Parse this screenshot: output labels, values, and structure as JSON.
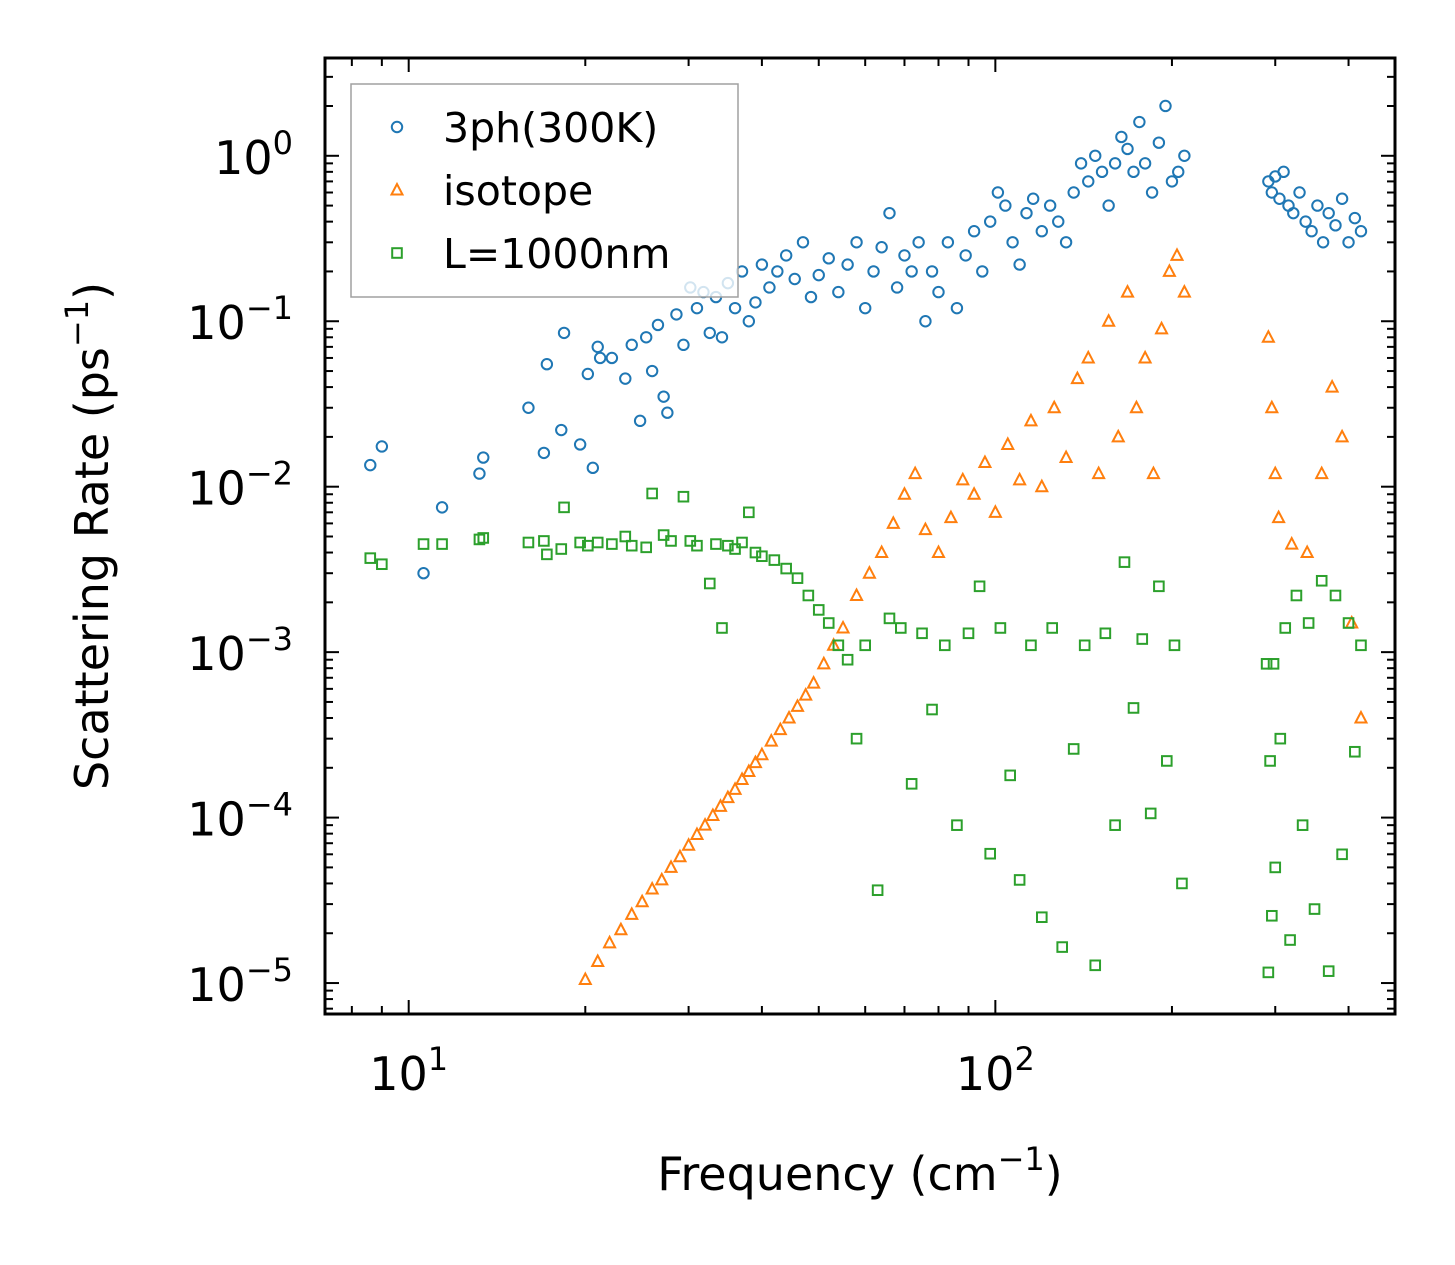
{
  "chart_data": {
    "type": "scatter",
    "xscale": "log",
    "yscale": "log",
    "xlabel": "Frequency (cm",
    "xlabel_exp": "−1",
    "xlabel_close": ")",
    "ylabel": "Scattering Rate (ps",
    "ylabel_exp": "−1",
    "ylabel_close": ")",
    "xlim": [
      7.2,
      480
    ],
    "ylim": [
      6.5e-06,
      3.9
    ],
    "xticks": [
      {
        "value": 10,
        "base": "10",
        "exp": "1"
      },
      {
        "value": 100,
        "base": "10",
        "exp": "2"
      }
    ],
    "yticks": [
      {
        "value": 1,
        "base": "10",
        "exp": "0"
      },
      {
        "value": 0.1,
        "base": "10",
        "exp": "−1"
      },
      {
        "value": 0.01,
        "base": "10",
        "exp": "−2"
      },
      {
        "value": 0.001,
        "base": "10",
        "exp": "−3"
      },
      {
        "value": 0.0001,
        "base": "10",
        "exp": "−4"
      },
      {
        "value": 1e-05,
        "base": "10",
        "exp": "−5"
      }
    ],
    "legend_position": "top-left",
    "series": [
      {
        "name": "3ph(300K)",
        "marker": "circle",
        "color": "#1f77b4",
        "x": [
          8.6,
          9.0,
          10.6,
          11.4,
          13.2,
          13.4,
          16.0,
          17.0,
          17.2,
          18.2,
          18.4,
          19.6,
          20.2,
          20.6,
          21.0,
          21.2,
          22.2,
          23.4,
          24.0,
          24.8,
          25.4,
          26.0,
          26.6,
          27.2,
          27.6,
          28.6,
          29.4,
          30.2,
          31.0,
          31.8,
          32.6,
          33.4,
          34.2,
          35.0,
          36.0,
          37.0,
          38.0,
          39.0,
          40.0,
          41.2,
          42.5,
          44.0,
          45.5,
          47.0,
          48.5,
          50.0,
          52.0,
          54.0,
          56.0,
          58.0,
          60.0,
          62.0,
          64.0,
          66.0,
          68.0,
          70.0,
          72.0,
          74.0,
          76.0,
          78.0,
          80.0,
          83.0,
          86.0,
          89.0,
          92.0,
          95.0,
          98.0,
          101.0,
          104.0,
          107.0,
          110.0,
          113.0,
          116.0,
          120.0,
          124.0,
          128.0,
          132.0,
          136.0,
          140.0,
          144.0,
          148.0,
          152.0,
          156.0,
          160.0,
          164.0,
          168.0,
          172.0,
          176.0,
          180.0,
          185.0,
          190.0,
          195.0,
          200.0,
          205.0,
          210.0,
          292.0,
          296.0,
          300.0,
          305.0,
          310.0,
          316.0,
          322.0,
          330.0,
          338.0,
          346.0,
          354.0,
          362.0,
          370.0,
          380.0,
          390.0,
          400.0,
          410.0,
          420.0
        ],
        "y": [
          0.0135,
          0.0175,
          0.003,
          0.0075,
          0.012,
          0.015,
          0.03,
          0.016,
          0.055,
          0.022,
          0.085,
          0.018,
          0.048,
          0.013,
          0.07,
          0.06,
          0.06,
          0.045,
          0.072,
          0.025,
          0.08,
          0.05,
          0.095,
          0.035,
          0.028,
          0.11,
          0.072,
          0.16,
          0.12,
          0.15,
          0.085,
          0.14,
          0.08,
          0.17,
          0.12,
          0.2,
          0.1,
          0.13,
          0.22,
          0.16,
          0.2,
          0.25,
          0.18,
          0.3,
          0.14,
          0.19,
          0.24,
          0.15,
          0.22,
          0.3,
          0.12,
          0.2,
          0.28,
          0.45,
          0.16,
          0.25,
          0.2,
          0.3,
          0.1,
          0.2,
          0.15,
          0.3,
          0.12,
          0.25,
          0.35,
          0.2,
          0.4,
          0.6,
          0.5,
          0.3,
          0.22,
          0.45,
          0.55,
          0.35,
          0.5,
          0.4,
          0.3,
          0.6,
          0.9,
          0.7,
          1.0,
          0.8,
          0.5,
          0.9,
          1.3,
          1.1,
          0.8,
          1.6,
          0.9,
          0.6,
          1.2,
          2.0,
          0.7,
          0.8,
          1.0,
          0.7,
          0.6,
          0.75,
          0.55,
          0.8,
          0.5,
          0.45,
          0.6,
          0.4,
          0.35,
          0.5,
          0.3,
          0.45,
          0.38,
          0.55,
          0.3,
          0.42,
          0.35
        ]
      },
      {
        "name": "isotope",
        "marker": "triangle",
        "color": "#ff7f0e",
        "x": [
          20.0,
          21.0,
          22.0,
          23.0,
          24.0,
          25.0,
          26.0,
          27.0,
          28.0,
          29.0,
          30.0,
          31.0,
          32.0,
          33.0,
          34.0,
          35.0,
          36.0,
          37.0,
          38.0,
          39.0,
          40.0,
          41.5,
          43.0,
          44.5,
          46.0,
          47.5,
          49.0,
          51.0,
          53.0,
          55.0,
          58.0,
          61.0,
          64.0,
          67.0,
          70.0,
          73.0,
          76.0,
          80.0,
          84.0,
          88.0,
          92.0,
          96.0,
          100.0,
          105.0,
          110.0,
          115.0,
          120.0,
          126.0,
          132.0,
          138.0,
          144.0,
          150.0,
          156.0,
          162.0,
          168.0,
          174.0,
          180.0,
          186.0,
          192.0,
          198.0,
          204.0,
          210.0,
          292.0,
          296.0,
          300.0,
          304.0,
          320.0,
          340.0,
          360.0,
          375.0,
          390.0,
          405.0,
          420.0
        ],
        "y": [
          1.05e-05,
          1.35e-05,
          1.75e-05,
          2.1e-05,
          2.6e-05,
          3.1e-05,
          3.7e-05,
          4.2e-05,
          5e-05,
          5.8e-05,
          6.8e-05,
          7.9e-05,
          9e-05,
          0.000103,
          0.000117,
          0.000132,
          0.000148,
          0.00017,
          0.00019,
          0.000215,
          0.00024,
          0.00029,
          0.00034,
          0.0004,
          0.00047,
          0.00055,
          0.00065,
          0.00085,
          0.0011,
          0.0014,
          0.0022,
          0.003,
          0.004,
          0.006,
          0.009,
          0.012,
          0.0055,
          0.004,
          0.0065,
          0.011,
          0.009,
          0.014,
          0.007,
          0.018,
          0.011,
          0.025,
          0.01,
          0.03,
          0.015,
          0.045,
          0.06,
          0.012,
          0.1,
          0.02,
          0.15,
          0.03,
          0.06,
          0.012,
          0.09,
          0.2,
          0.25,
          0.15,
          0.08,
          0.03,
          0.012,
          0.0065,
          0.0045,
          0.004,
          0.012,
          0.04,
          0.02,
          0.0015,
          0.0004
        ]
      },
      {
        "name": "L=1000nm",
        "marker": "square",
        "color": "#2ca02c",
        "x": [
          8.6,
          9.0,
          10.6,
          11.4,
          13.2,
          13.4,
          16.0,
          17.0,
          17.2,
          18.2,
          18.4,
          19.6,
          20.2,
          21.0,
          22.2,
          23.4,
          24.0,
          25.4,
          26.0,
          27.2,
          28.0,
          29.4,
          30.2,
          31.0,
          32.6,
          33.4,
          34.2,
          35.0,
          36.0,
          37.0,
          38.0,
          39.0,
          40.0,
          42.0,
          44.0,
          46.0,
          48.0,
          50.0,
          52.0,
          54.0,
          56.0,
          58.0,
          60.0,
          63.0,
          66.0,
          69.0,
          72.0,
          75.0,
          78.0,
          82.0,
          86.0,
          90.0,
          94.0,
          98.0,
          102.0,
          106.0,
          110.0,
          115.0,
          120.0,
          125.0,
          130.0,
          136.0,
          142.0,
          148.0,
          154.0,
          160.0,
          166.0,
          172.0,
          178.0,
          184.0,
          190.0,
          196.0,
          202.0,
          208.0,
          290.0,
          292.0,
          294.0,
          296.0,
          298.0,
          300.0,
          306.0,
          312.0,
          318.0,
          326.0,
          334.0,
          342.0,
          350.0,
          360.0,
          370.0,
          380.0,
          390.0,
          400.0,
          410.0,
          420.0
        ],
        "y": [
          0.0037,
          0.0034,
          0.0045,
          0.0045,
          0.0048,
          0.0049,
          0.0046,
          0.0047,
          0.0039,
          0.0042,
          0.0075,
          0.0046,
          0.0044,
          0.0046,
          0.0045,
          0.005,
          0.0044,
          0.0043,
          0.0091,
          0.0051,
          0.0047,
          0.0087,
          0.0047,
          0.0044,
          0.0026,
          0.0045,
          0.0014,
          0.0044,
          0.0042,
          0.0046,
          0.007,
          0.004,
          0.0038,
          0.0036,
          0.0032,
          0.0028,
          0.0022,
          0.0018,
          0.0015,
          0.0011,
          0.0009,
          0.0003,
          0.0011,
          3.64e-05,
          0.0016,
          0.0014,
          0.00016,
          0.0013,
          0.00045,
          0.0011,
          9e-05,
          0.0013,
          0.0025,
          6.05e-05,
          0.0014,
          0.00018,
          4.2e-05,
          0.0011,
          2.5e-05,
          0.0014,
          1.65e-05,
          0.00026,
          0.0011,
          1.28e-05,
          0.0013,
          9e-05,
          0.0035,
          0.00046,
          0.0012,
          0.000106,
          0.0025,
          0.00022,
          0.0011,
          4e-05,
          0.00085,
          1.16e-05,
          0.00022,
          2.55e-05,
          0.00085,
          5e-05,
          0.0003,
          0.0014,
          1.82e-05,
          0.0022,
          9e-05,
          0.0015,
          2.8e-05,
          0.0027,
          1.18e-05,
          0.0022,
          6e-05,
          0.0015,
          0.00025,
          0.0011
        ]
      }
    ]
  }
}
